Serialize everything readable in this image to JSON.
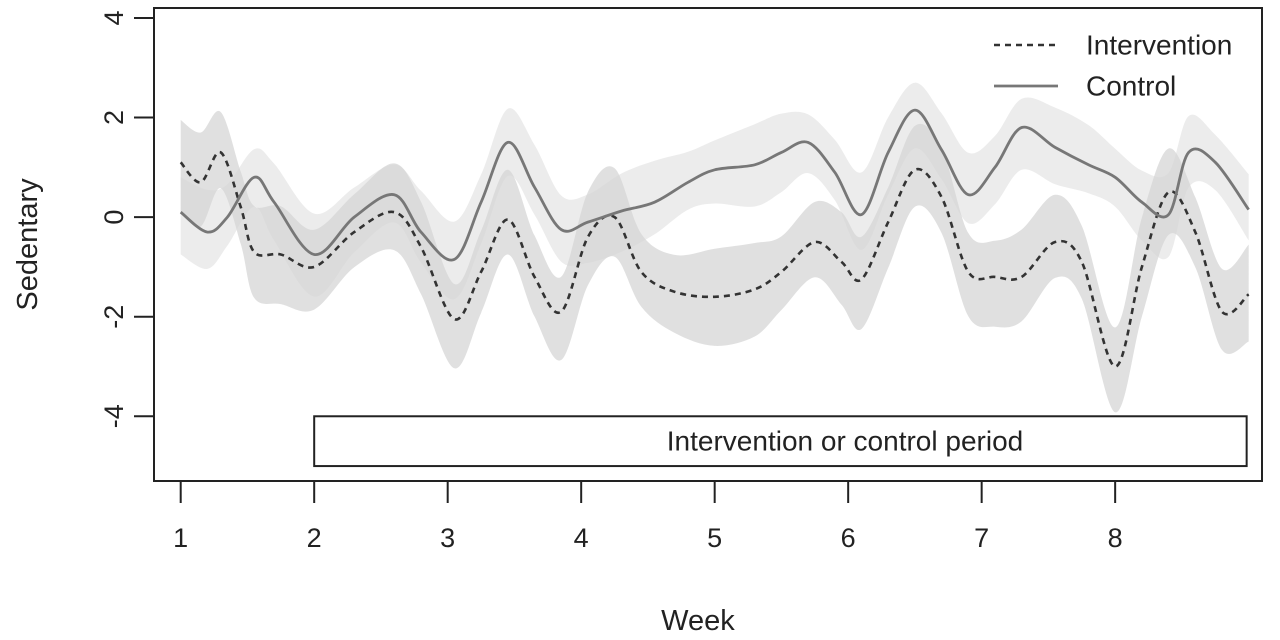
{
  "chart_data": {
    "type": "line",
    "xlabel": "Week",
    "ylabel": "Sedentary",
    "xlim": [
      0.8,
      9.1
    ],
    "ylim": [
      -5.3,
      4.2
    ],
    "xticks": [
      1,
      2,
      3,
      4,
      5,
      6,
      7,
      8
    ],
    "yticks": [
      -4,
      -2,
      0,
      2,
      4
    ],
    "grid": false,
    "legend_position": "top-right",
    "annotation": {
      "text": "Intervention or control period",
      "x_start": 2,
      "x_end": 9,
      "y_bottom": -5,
      "y_top": -4
    },
    "band_colors": {
      "intervention": "#d6d6d6",
      "control": "#e9e9e9"
    },
    "series": [
      {
        "name": "Intervention",
        "style": "dashed",
        "color": "#333333",
        "x": [
          1,
          1.15,
          1.3,
          1.45,
          1.55,
          1.75,
          2,
          2.3,
          2.6,
          2.8,
          3.05,
          3.25,
          3.45,
          3.65,
          3.85,
          4.05,
          4.25,
          4.45,
          4.7,
          5.0,
          5.3,
          5.5,
          5.75,
          5.95,
          6.1,
          6.3,
          6.5,
          6.7,
          6.9,
          7.1,
          7.3,
          7.55,
          7.75,
          8.0,
          8.2,
          8.4,
          8.6,
          8.8,
          9.0
        ],
        "y": [
          1.1,
          0.7,
          1.3,
          0.2,
          -0.7,
          -0.75,
          -1.0,
          -0.3,
          0.1,
          -0.6,
          -2.05,
          -1.1,
          -0.05,
          -1.2,
          -1.9,
          -0.4,
          0.0,
          -1.1,
          -1.5,
          -1.6,
          -1.45,
          -1.1,
          -0.5,
          -0.9,
          -1.25,
          -0.1,
          0.95,
          0.4,
          -1.1,
          -1.2,
          -1.2,
          -0.5,
          -0.9,
          -3.0,
          -1.0,
          0.5,
          -0.3,
          -1.9,
          -1.55
        ]
      },
      {
        "name": "Control",
        "style": "solid",
        "color": "#777777",
        "x": [
          1,
          1.2,
          1.35,
          1.55,
          1.7,
          2.0,
          2.3,
          2.6,
          2.8,
          3.05,
          3.25,
          3.45,
          3.65,
          3.85,
          4.05,
          4.3,
          4.55,
          4.8,
          5.0,
          5.3,
          5.5,
          5.7,
          5.9,
          6.1,
          6.3,
          6.5,
          6.7,
          6.9,
          7.1,
          7.3,
          7.55,
          7.8,
          8.0,
          8.2,
          8.4,
          8.55,
          8.75,
          9.0
        ],
        "y": [
          0.1,
          -0.3,
          0.0,
          0.8,
          0.3,
          -0.75,
          0.0,
          0.45,
          -0.3,
          -0.85,
          0.3,
          1.5,
          0.6,
          -0.25,
          -0.1,
          0.12,
          0.3,
          0.7,
          0.95,
          1.05,
          1.3,
          1.5,
          0.9,
          0.05,
          1.3,
          2.15,
          1.35,
          0.45,
          1.0,
          1.8,
          1.4,
          1.05,
          0.8,
          0.3,
          0.05,
          1.3,
          1.1,
          0.15
        ]
      }
    ]
  }
}
